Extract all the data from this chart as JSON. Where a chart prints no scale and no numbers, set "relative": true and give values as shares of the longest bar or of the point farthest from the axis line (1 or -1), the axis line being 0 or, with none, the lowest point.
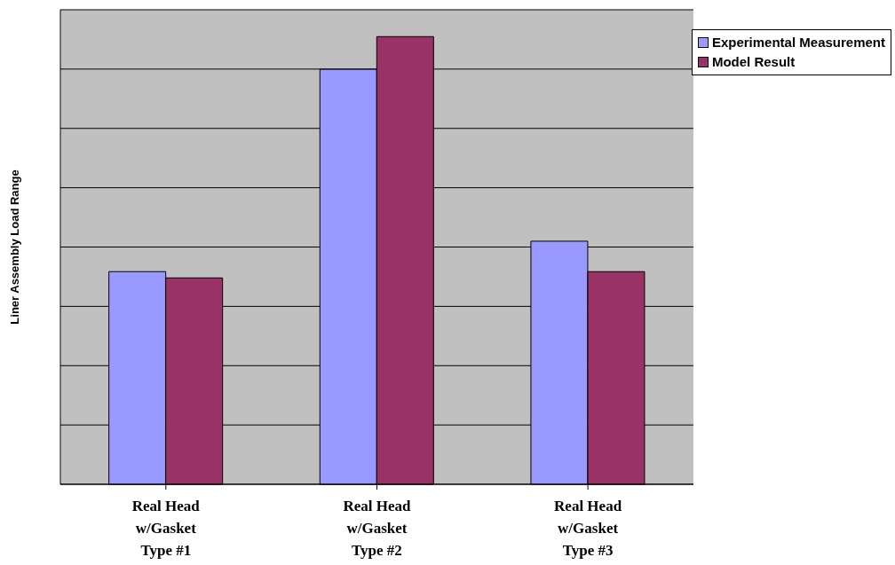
{
  "chart_data": {
    "type": "bar",
    "ylabel": "Liner Assembly Load Range",
    "relative": true,
    "grid": "y",
    "legend": "top right",
    "categories": [
      "Real Head\nw/Gasket\nType #1",
      "Real Head\nw/Gasket\nType #2",
      "Real Head\nw/Gasket\nType #3"
    ],
    "series": [
      {
        "name": "Experimental Measurement",
        "color": "#9999ff",
        "values": [
          0.475,
          0.927,
          0.543
        ]
      },
      {
        "name": "Model Result",
        "color": "#993366",
        "values": [
          0.461,
          1,
          0.475
        ]
      }
    ]
  }
}
